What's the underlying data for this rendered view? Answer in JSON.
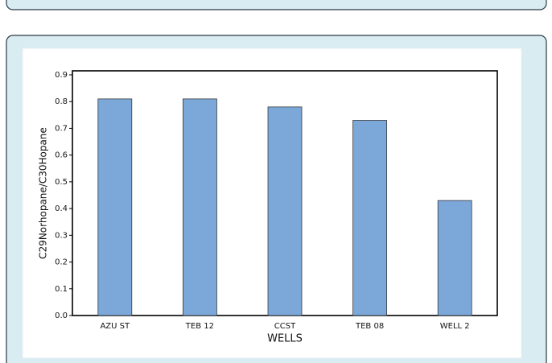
{
  "chart_data": {
    "type": "bar",
    "categories": [
      "AZU ST",
      "TEB 12",
      "CCST",
      "TEB 08",
      "WELL 2"
    ],
    "values": [
      0.81,
      0.81,
      0.78,
      0.73,
      0.43
    ],
    "color": "#7ba7d9",
    "x_label": "WELLS",
    "y_label": "C29Norhopane/C30Hopane",
    "ylim": [
      0,
      0.915
    ],
    "yticks": [
      {
        "value": 0,
        "label": "0.0"
      },
      0.1,
      0.2,
      0.3,
      0.4,
      0.5,
      0.6,
      0.7,
      0.8,
      0.9
    ],
    "grid": false
  }
}
